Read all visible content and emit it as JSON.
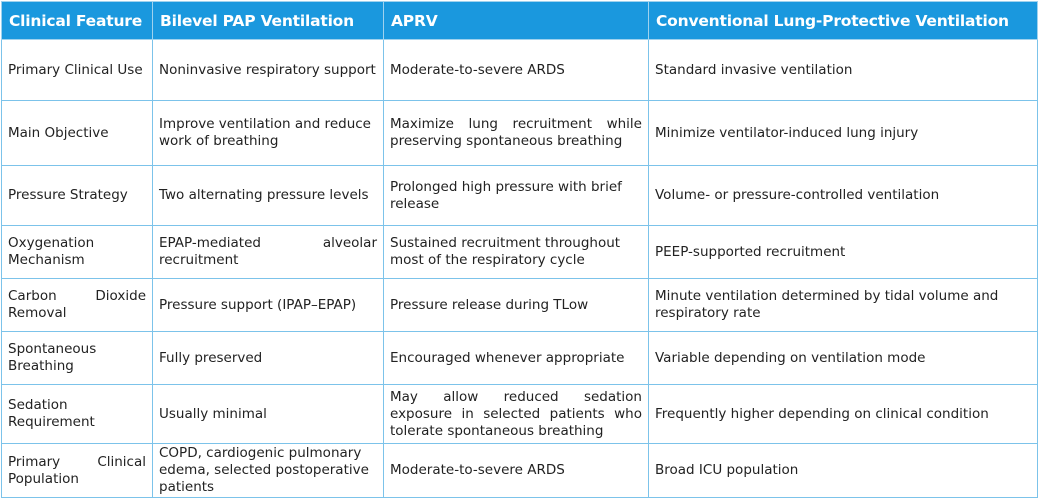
{
  "table": {
    "headers": [
      "Clinical Feature",
      "Bilevel PAP Ventilation",
      "APRV",
      "Conventional Lung-Protective Ventilation"
    ],
    "rows": [
      [
        "Primary Clinical Use",
        "Noninvasive respiratory support",
        "Moderate-to-severe ARDS",
        "Standard invasive ventilation"
      ],
      [
        "Main Objective",
        "Improve ventilation and reduce work of breathing",
        "Maximize lung recruitment while preserving spontaneous breathing",
        "Minimize ventilator-induced lung injury"
      ],
      [
        "Pressure Strategy",
        "Two alternating pressure levels",
        "Prolonged high pressure with brief release",
        "Volume- or pressure-controlled ventilation"
      ],
      [
        "Oxygenation Mechanism",
        "EPAP-mediated alveolar recruitment",
        "Sustained recruitment throughout most of the respiratory cycle",
        "PEEP-supported recruitment"
      ],
      [
        "Carbon Dioxide Removal",
        "Pressure support (IPAP–EPAP)",
        "Pressure release during TLow",
        "Minute ventilation determined by tidal volume and respiratory rate"
      ],
      [
        "Spontaneous Breathing",
        "Fully preserved",
        "Encouraged whenever appropriate",
        "Variable depending on ventilation mode"
      ],
      [
        "Sedation Requirement",
        "Usually minimal",
        "May allow reduced sedation exposure in selected patients who tolerate spontaneous breathing",
        "Frequently higher depending on clinical condition"
      ],
      [
        "Primary Clinical Population",
        "COPD, cardiogenic pulmonary edema, selected postoperative patients",
        "Moderate-to-severe ARDS",
        "Broad ICU population"
      ]
    ]
  }
}
